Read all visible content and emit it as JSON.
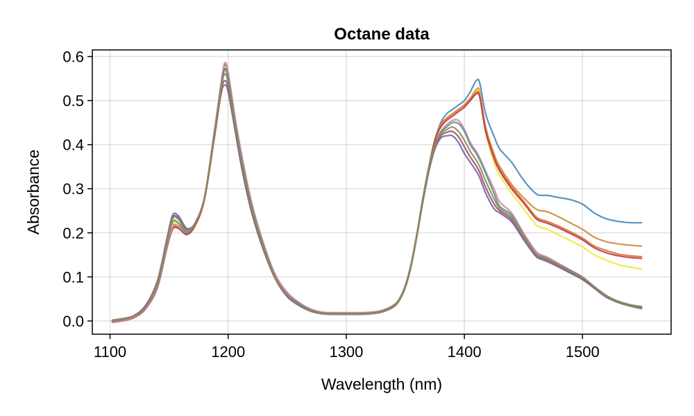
{
  "chart_data": {
    "type": "line",
    "title": "Octane data",
    "xlabel": "Wavelength (nm)",
    "ylabel": "Absorbance",
    "xlim": [
      1085,
      1575
    ],
    "ylim": [
      -0.03,
      0.615
    ],
    "xticks": [
      1100,
      1200,
      1300,
      1400,
      1500
    ],
    "yticks": [
      0.0,
      0.1,
      0.2,
      0.3,
      0.4,
      0.5,
      0.6
    ],
    "ytick_labels": [
      "0.0",
      "0.1",
      "0.2",
      "0.3",
      "0.4",
      "0.5",
      "0.6"
    ],
    "grid": true,
    "legend": "none",
    "x": [
      1102,
      1110,
      1120,
      1130,
      1140,
      1148,
      1153,
      1158,
      1165,
      1172,
      1180,
      1188,
      1194,
      1197,
      1200,
      1206,
      1212,
      1220,
      1230,
      1240,
      1250,
      1260,
      1270,
      1280,
      1290,
      1300,
      1310,
      1320,
      1330,
      1340,
      1345,
      1350,
      1355,
      1360,
      1365,
      1370,
      1375,
      1380,
      1385,
      1390,
      1395,
      1400,
      1405,
      1410,
      1413,
      1418,
      1425,
      1430,
      1440,
      1450,
      1460,
      1465,
      1470,
      1480,
      1490,
      1500,
      1510,
      1520,
      1530,
      1540,
      1550
    ],
    "series": [
      {
        "color": "#4a8bbd",
        "values": [
          0.0,
          0.003,
          0.01,
          0.03,
          0.08,
          0.17,
          0.22,
          0.22,
          0.2,
          0.22,
          0.28,
          0.42,
          0.535,
          0.58,
          0.56,
          0.45,
          0.36,
          0.26,
          0.17,
          0.1,
          0.06,
          0.04,
          0.025,
          0.018,
          0.017,
          0.017,
          0.017,
          0.018,
          0.022,
          0.035,
          0.05,
          0.08,
          0.13,
          0.2,
          0.28,
          0.35,
          0.41,
          0.45,
          0.47,
          0.48,
          0.49,
          0.5,
          0.52,
          0.545,
          0.54,
          0.47,
          0.42,
          0.39,
          0.36,
          0.32,
          0.29,
          0.285,
          0.285,
          0.28,
          0.275,
          0.265,
          0.245,
          0.232,
          0.226,
          0.223,
          0.223
        ]
      },
      {
        "color": "#cd8d3d",
        "values": [
          0.0,
          0.003,
          0.01,
          0.03,
          0.08,
          0.17,
          0.215,
          0.215,
          0.2,
          0.22,
          0.28,
          0.42,
          0.53,
          0.575,
          0.555,
          0.45,
          0.36,
          0.26,
          0.17,
          0.1,
          0.06,
          0.04,
          0.025,
          0.018,
          0.017,
          0.017,
          0.017,
          0.018,
          0.022,
          0.035,
          0.05,
          0.08,
          0.13,
          0.2,
          0.28,
          0.35,
          0.41,
          0.445,
          0.46,
          0.47,
          0.48,
          0.49,
          0.505,
          0.525,
          0.52,
          0.44,
          0.38,
          0.35,
          0.31,
          0.28,
          0.255,
          0.25,
          0.248,
          0.236,
          0.222,
          0.208,
          0.19,
          0.18,
          0.175,
          0.172,
          0.17
        ]
      },
      {
        "color": "#f2e83a",
        "values": [
          0.0,
          0.003,
          0.01,
          0.03,
          0.08,
          0.17,
          0.22,
          0.22,
          0.2,
          0.22,
          0.28,
          0.42,
          0.53,
          0.575,
          0.555,
          0.45,
          0.36,
          0.26,
          0.17,
          0.1,
          0.06,
          0.04,
          0.025,
          0.018,
          0.017,
          0.017,
          0.017,
          0.018,
          0.022,
          0.035,
          0.05,
          0.08,
          0.13,
          0.2,
          0.28,
          0.35,
          0.41,
          0.445,
          0.46,
          0.47,
          0.48,
          0.49,
          0.505,
          0.52,
          0.515,
          0.43,
          0.36,
          0.33,
          0.29,
          0.255,
          0.22,
          0.212,
          0.208,
          0.195,
          0.182,
          0.168,
          0.15,
          0.138,
          0.128,
          0.122,
          0.118
        ]
      },
      {
        "color": "#d8743a",
        "values": [
          -0.002,
          0.001,
          0.008,
          0.028,
          0.075,
          0.165,
          0.21,
          0.212,
          0.198,
          0.218,
          0.278,
          0.415,
          0.53,
          0.572,
          0.552,
          0.448,
          0.358,
          0.258,
          0.168,
          0.1,
          0.06,
          0.04,
          0.025,
          0.018,
          0.017,
          0.017,
          0.017,
          0.018,
          0.022,
          0.035,
          0.05,
          0.08,
          0.13,
          0.2,
          0.28,
          0.35,
          0.41,
          0.445,
          0.46,
          0.47,
          0.48,
          0.49,
          0.505,
          0.518,
          0.512,
          0.435,
          0.375,
          0.345,
          0.305,
          0.272,
          0.238,
          0.23,
          0.226,
          0.215,
          0.202,
          0.188,
          0.17,
          0.16,
          0.152,
          0.148,
          0.146
        ]
      },
      {
        "color": "#c0394b",
        "values": [
          -0.003,
          0.0,
          0.007,
          0.027,
          0.074,
          0.163,
          0.208,
          0.21,
          0.196,
          0.216,
          0.276,
          0.412,
          0.528,
          0.57,
          0.55,
          0.446,
          0.356,
          0.256,
          0.166,
          0.099,
          0.06,
          0.04,
          0.025,
          0.018,
          0.017,
          0.017,
          0.017,
          0.018,
          0.022,
          0.035,
          0.05,
          0.08,
          0.13,
          0.2,
          0.28,
          0.35,
          0.41,
          0.44,
          0.455,
          0.465,
          0.475,
          0.485,
          0.5,
          0.515,
          0.508,
          0.43,
          0.37,
          0.34,
          0.3,
          0.268,
          0.234,
          0.226,
          0.222,
          0.211,
          0.198,
          0.184,
          0.166,
          0.155,
          0.148,
          0.144,
          0.142
        ]
      },
      {
        "color": "#e27fa8",
        "values": [
          -0.002,
          0.001,
          0.008,
          0.028,
          0.075,
          0.166,
          0.212,
          0.214,
          0.2,
          0.222,
          0.282,
          0.425,
          0.54,
          0.585,
          0.565,
          0.46,
          0.37,
          0.268,
          0.176,
          0.105,
          0.065,
          0.042,
          0.027,
          0.02,
          0.019,
          0.019,
          0.019,
          0.02,
          0.024,
          0.036,
          0.05,
          0.08,
          0.13,
          0.2,
          0.28,
          0.35,
          0.4,
          0.43,
          0.445,
          0.455,
          0.455,
          0.435,
          0.405,
          0.385,
          0.37,
          0.34,
          0.3,
          0.27,
          0.245,
          0.2,
          0.16,
          0.15,
          0.145,
          0.13,
          0.115,
          0.1,
          0.078,
          0.058,
          0.045,
          0.037,
          0.032
        ]
      },
      {
        "color": "#4d9a8e",
        "values": [
          0.0,
          0.003,
          0.01,
          0.03,
          0.08,
          0.172,
          0.225,
          0.222,
          0.2,
          0.22,
          0.28,
          0.42,
          0.532,
          0.572,
          0.552,
          0.45,
          0.36,
          0.26,
          0.17,
          0.1,
          0.06,
          0.04,
          0.025,
          0.018,
          0.017,
          0.017,
          0.017,
          0.018,
          0.022,
          0.035,
          0.05,
          0.08,
          0.13,
          0.2,
          0.28,
          0.35,
          0.4,
          0.428,
          0.44,
          0.45,
          0.448,
          0.43,
          0.4,
          0.38,
          0.365,
          0.335,
          0.29,
          0.26,
          0.24,
          0.195,
          0.155,
          0.147,
          0.142,
          0.128,
          0.114,
          0.099,
          0.078,
          0.058,
          0.045,
          0.037,
          0.033
        ]
      },
      {
        "color": "#7a64a5",
        "values": [
          0.002,
          0.005,
          0.012,
          0.035,
          0.09,
          0.185,
          0.24,
          0.238,
          0.21,
          0.222,
          0.28,
          0.41,
          0.515,
          0.535,
          0.52,
          0.43,
          0.34,
          0.245,
          0.16,
          0.095,
          0.055,
          0.035,
          0.022,
          0.016,
          0.015,
          0.015,
          0.015,
          0.016,
          0.02,
          0.032,
          0.047,
          0.076,
          0.125,
          0.195,
          0.272,
          0.34,
          0.39,
          0.415,
          0.42,
          0.42,
          0.405,
          0.38,
          0.36,
          0.34,
          0.325,
          0.29,
          0.255,
          0.245,
          0.225,
          0.185,
          0.148,
          0.14,
          0.135,
          0.122,
          0.108,
          0.094,
          0.074,
          0.054,
          0.042,
          0.034,
          0.028
        ]
      },
      {
        "color": "#a0526e",
        "values": [
          0.001,
          0.004,
          0.011,
          0.033,
          0.086,
          0.18,
          0.235,
          0.233,
          0.206,
          0.22,
          0.278,
          0.412,
          0.52,
          0.545,
          0.528,
          0.436,
          0.346,
          0.25,
          0.163,
          0.097,
          0.057,
          0.037,
          0.023,
          0.017,
          0.016,
          0.016,
          0.016,
          0.017,
          0.021,
          0.033,
          0.048,
          0.078,
          0.127,
          0.197,
          0.275,
          0.343,
          0.394,
          0.42,
          0.428,
          0.43,
          0.418,
          0.395,
          0.372,
          0.352,
          0.337,
          0.303,
          0.266,
          0.25,
          0.23,
          0.19,
          0.151,
          0.143,
          0.138,
          0.125,
          0.111,
          0.096,
          0.076,
          0.056,
          0.043,
          0.035,
          0.03
        ]
      },
      {
        "color": "#8e8e4e",
        "values": [
          0.001,
          0.004,
          0.011,
          0.032,
          0.084,
          0.177,
          0.232,
          0.23,
          0.204,
          0.221,
          0.28,
          0.416,
          0.526,
          0.56,
          0.54,
          0.442,
          0.352,
          0.255,
          0.166,
          0.098,
          0.058,
          0.038,
          0.024,
          0.017,
          0.016,
          0.016,
          0.016,
          0.017,
          0.021,
          0.034,
          0.049,
          0.079,
          0.128,
          0.198,
          0.277,
          0.346,
          0.397,
          0.424,
          0.434,
          0.44,
          0.43,
          0.41,
          0.385,
          0.365,
          0.35,
          0.318,
          0.278,
          0.255,
          0.235,
          0.192,
          0.153,
          0.145,
          0.14,
          0.127,
          0.112,
          0.098,
          0.077,
          0.057,
          0.044,
          0.036,
          0.031
        ]
      }
    ]
  }
}
